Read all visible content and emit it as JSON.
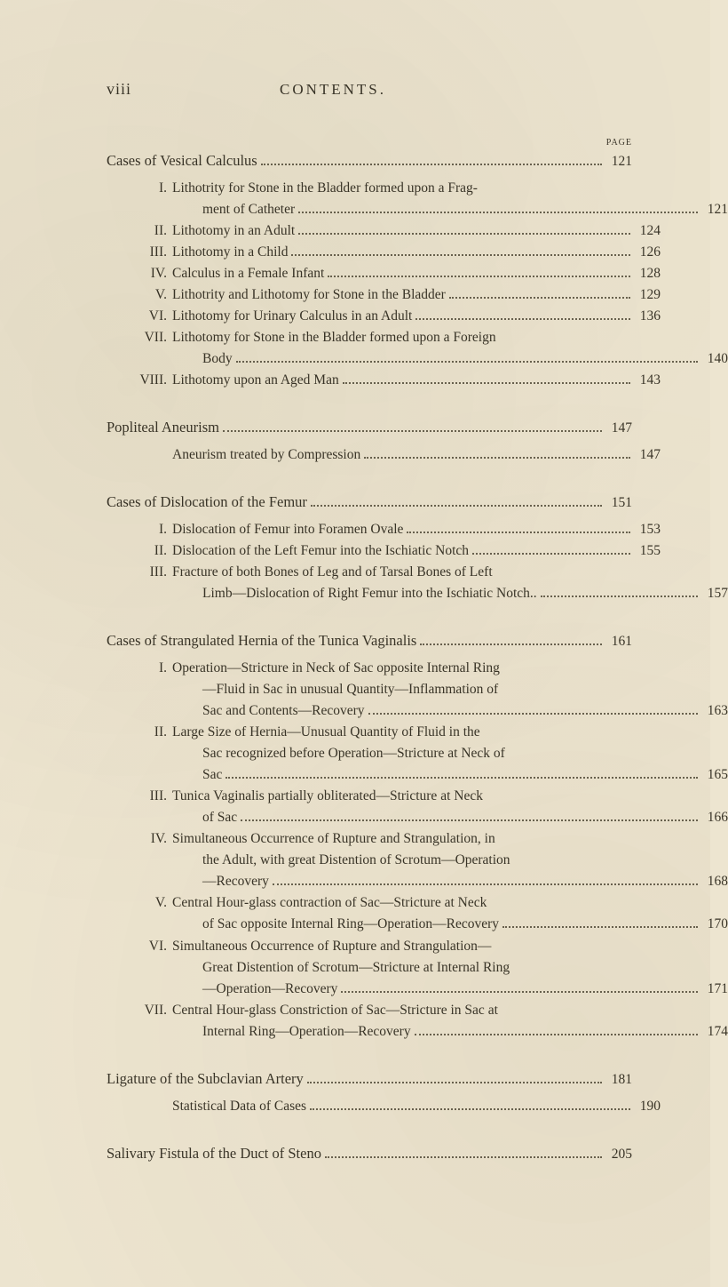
{
  "header": {
    "page_roman": "viii",
    "title": "CONTENTS.",
    "page_label": "PAGE"
  },
  "sections": [
    {
      "title": "Cases of Vesical Calculus",
      "page": "121",
      "items": [
        {
          "roman": "I.",
          "lines": [
            "Lithotrity for Stone in the Bladder formed upon a Frag-",
            "ment of Catheter"
          ],
          "page": "121"
        },
        {
          "roman": "II.",
          "lines": [
            "Lithotomy in an Adult"
          ],
          "page": "124"
        },
        {
          "roman": "III.",
          "lines": [
            "Lithotomy in a Child"
          ],
          "page": "126"
        },
        {
          "roman": "IV.",
          "lines": [
            "Calculus in a Female Infant"
          ],
          "page": "128"
        },
        {
          "roman": "V.",
          "lines": [
            "Lithotrity and Lithotomy for Stone in the Bladder"
          ],
          "page": "129"
        },
        {
          "roman": "VI.",
          "lines": [
            "Lithotomy for Urinary Calculus in an Adult"
          ],
          "page": "136"
        },
        {
          "roman": "VII.",
          "lines": [
            "Lithotomy for Stone in the Bladder formed upon a Foreign",
            "Body"
          ],
          "page": "140"
        },
        {
          "roman": "VIII.",
          "lines": [
            "Lithotomy upon an Aged Man"
          ],
          "page": "143"
        }
      ]
    },
    {
      "title": "Popliteal Aneurism",
      "page": "147",
      "items": [
        {
          "roman": "",
          "lines": [
            "Aneurism treated by Compression"
          ],
          "page": "147"
        }
      ]
    },
    {
      "title": "Cases of Dislocation of the Femur",
      "page": "151",
      "items": [
        {
          "roman": "I.",
          "lines": [
            "Dislocation of Femur into Foramen Ovale"
          ],
          "page": "153"
        },
        {
          "roman": "II.",
          "lines": [
            "Dislocation of the Left Femur into the Ischiatic Notch"
          ],
          "page": "155"
        },
        {
          "roman": "III.",
          "lines": [
            "Fracture of both Bones of Leg and of Tarsal Bones of Left",
            "Limb—Dislocation of Right Femur into the Ischiatic Notch.."
          ],
          "page": "157"
        }
      ]
    },
    {
      "title": "Cases of Strangulated Hernia of the Tunica Vaginalis",
      "page": "161",
      "items": [
        {
          "roman": "I.",
          "lines": [
            "Operation—Stricture in Neck of Sac opposite Internal Ring",
            "—Fluid in Sac in unusual Quantity—Inflammation of",
            "Sac and Contents—Recovery"
          ],
          "page": "163"
        },
        {
          "roman": "II.",
          "lines": [
            "Large Size of Hernia—Unusual Quantity of Fluid in the",
            "Sac recognized before Operation—Stricture at Neck of",
            "Sac"
          ],
          "page": "165"
        },
        {
          "roman": "III.",
          "lines": [
            "Tunica Vaginalis partially obliterated—Stricture at Neck",
            "of Sac"
          ],
          "page": "166"
        },
        {
          "roman": "IV.",
          "lines": [
            "Simultaneous Occurrence of Rupture and Strangulation, in",
            "the Adult, with great Distention of Scrotum—Operation",
            "—Recovery"
          ],
          "page": "168"
        },
        {
          "roman": "V.",
          "lines": [
            "Central Hour-glass contraction of Sac—Stricture at Neck",
            "of Sac opposite Internal Ring—Operation—Recovery"
          ],
          "page": "170"
        },
        {
          "roman": "VI.",
          "lines": [
            "Simultaneous Occurrence of Rupture and Strangulation—",
            "Great Distention of Scrotum—Stricture at Internal Ring",
            "—Operation—Recovery"
          ],
          "page": "171"
        },
        {
          "roman": "VII.",
          "lines": [
            "Central Hour-glass Constriction of Sac—Stricture in Sac at",
            "Internal Ring—Operation—Recovery"
          ],
          "page": "174"
        }
      ]
    },
    {
      "title": "Ligature of the Subclavian Artery",
      "page": "181",
      "items": [
        {
          "roman": "",
          "lines": [
            "Statistical Data of Cases"
          ],
          "page": "190"
        }
      ]
    },
    {
      "title": "Salivary Fistula of the Duct of Steno",
      "page": "205",
      "items": []
    }
  ],
  "style": {
    "background_color": "#ede5d0",
    "text_color": "#3a3528",
    "body_fontsize": 15.5,
    "title_fontsize": 16.5,
    "header_fontsize": 17
  }
}
